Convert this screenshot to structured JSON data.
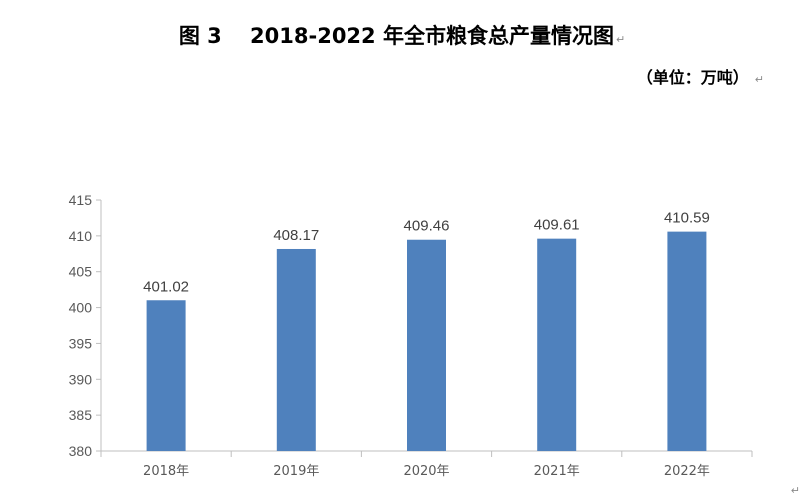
{
  "title": "图 3　 2018-2022 年全市粮食总产量情况图",
  "unit_label": "（单位：万吨）",
  "paragraph_mark": "↵",
  "chart_data": {
    "type": "bar",
    "title": "图 3　 2018-2022 年全市粮食总产量情况图",
    "xlabel": "",
    "ylabel": "",
    "unit": "（单位：万吨）",
    "categories": [
      "2018年",
      "2019年",
      "2020年",
      "2021年",
      "2022年"
    ],
    "values": [
      401.02,
      408.17,
      409.46,
      409.61,
      410.59
    ],
    "data_labels": [
      "401.02",
      "408.17",
      "409.46",
      "409.61",
      "410.59"
    ],
    "ylim": [
      380,
      415
    ],
    "yticks": [
      380,
      385,
      390,
      395,
      400,
      405,
      410,
      415
    ],
    "grid": false,
    "legend": "none",
    "bar_color": "#4f81bd"
  }
}
